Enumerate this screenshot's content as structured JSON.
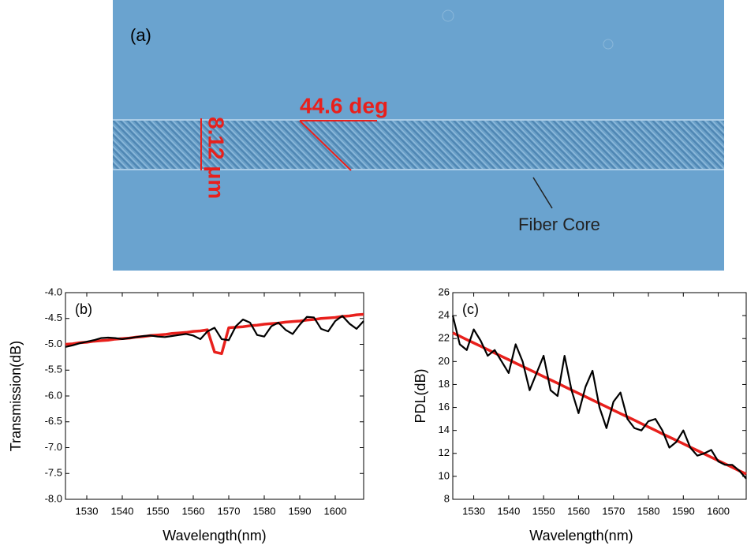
{
  "micrograph": {
    "label": "(a)",
    "angle_annotation": "44.6 deg",
    "width_annotation": "8.12 μm",
    "core_annotation": "Fiber Core"
  },
  "chart_data": [
    {
      "type": "line",
      "panel_label": "(b)",
      "x_label": "Wavelength(nm)",
      "y_label": "Transmission(dB)",
      "xlim": [
        1524,
        1608
      ],
      "xticks": [
        1530,
        1540,
        1550,
        1560,
        1570,
        1580,
        1590,
        1600
      ],
      "ylim": [
        -8,
        -4
      ],
      "yticks": [
        {
          "value": -8,
          "label": "-8.0"
        },
        -7.5,
        {
          "value": -7,
          "label": "-7.0"
        },
        -6.5,
        {
          "value": -6,
          "label": "-6.0"
        },
        -5.5,
        {
          "value": -5,
          "label": "-5.0"
        },
        -4.5,
        {
          "value": -4,
          "label": "-4.0"
        }
      ],
      "x": [
        1524,
        1526,
        1528,
        1530,
        1532,
        1534,
        1536,
        1538,
        1540,
        1542,
        1544,
        1546,
        1548,
        1550,
        1552,
        1554,
        1556,
        1558,
        1560,
        1562,
        1564,
        1566,
        1568,
        1570,
        1572,
        1574,
        1576,
        1578,
        1580,
        1582,
        1584,
        1586,
        1588,
        1590,
        1592,
        1594,
        1596,
        1598,
        1600,
        1602,
        1604,
        1606,
        1608
      ],
      "series": [
        {
          "color": "#e8201c",
          "values": [
            -5.0,
            -4.99,
            -4.97,
            -4.96,
            -4.94,
            -4.93,
            -4.92,
            -4.9,
            -4.89,
            -4.88,
            -4.86,
            -4.85,
            -4.83,
            -4.82,
            -4.81,
            -4.79,
            -4.78,
            -4.77,
            -4.75,
            -4.74,
            -4.72,
            -5.15,
            -5.18,
            -4.68,
            -4.67,
            -4.66,
            -4.64,
            -4.63,
            -4.61,
            -4.6,
            -4.59,
            -4.57,
            -4.56,
            -4.55,
            -4.53,
            -4.52,
            -4.5,
            -4.49,
            -4.48,
            -4.46,
            -4.45,
            -4.43,
            -4.42
          ]
        },
        {
          "color": "#000000",
          "values": [
            -5.05,
            -5.02,
            -4.98,
            -4.95,
            -4.92,
            -4.88,
            -4.87,
            -4.88,
            -4.9,
            -4.88,
            -4.86,
            -4.84,
            -4.83,
            -4.85,
            -4.86,
            -4.84,
            -4.82,
            -4.8,
            -4.83,
            -4.9,
            -4.75,
            -4.68,
            -4.9,
            -4.92,
            -4.65,
            -4.52,
            -4.58,
            -4.82,
            -4.85,
            -4.65,
            -4.58,
            -4.72,
            -4.8,
            -4.62,
            -4.47,
            -4.48,
            -4.7,
            -4.75,
            -4.55,
            -4.45,
            -4.6,
            -4.7,
            -4.55
          ]
        }
      ]
    },
    {
      "type": "line",
      "panel_label": "(c)",
      "x_label": "Wavelength(nm)",
      "y_label": "PDL(dB)",
      "xlim": [
        1524,
        1608
      ],
      "xticks": [
        1530,
        1540,
        1550,
        1560,
        1570,
        1580,
        1590,
        1600
      ],
      "ylim": [
        8,
        26
      ],
      "yticks": [
        8,
        10,
        12,
        14,
        16,
        18,
        20,
        22,
        24,
        26
      ],
      "x": [
        1524,
        1526,
        1528,
        1530,
        1532,
        1534,
        1536,
        1538,
        1540,
        1542,
        1544,
        1546,
        1548,
        1550,
        1552,
        1554,
        1556,
        1558,
        1560,
        1562,
        1564,
        1566,
        1568,
        1570,
        1572,
        1574,
        1576,
        1578,
        1580,
        1582,
        1584,
        1586,
        1588,
        1590,
        1592,
        1594,
        1596,
        1598,
        1600,
        1602,
        1604,
        1606,
        1608
      ],
      "series": [
        {
          "color": "#e8201c",
          "values": [
            22.5,
            22.21,
            21.91,
            21.62,
            21.33,
            21.04,
            20.74,
            20.45,
            20.16,
            19.86,
            19.57,
            19.28,
            18.99,
            18.69,
            18.4,
            18.11,
            17.81,
            17.52,
            17.23,
            16.94,
            16.64,
            16.35,
            16.06,
            15.76,
            15.47,
            15.18,
            14.89,
            14.59,
            14.3,
            14.01,
            13.71,
            13.42,
            13.13,
            12.84,
            12.54,
            12.25,
            11.96,
            11.66,
            11.37,
            11.08,
            10.79,
            10.49,
            10.2
          ]
        },
        {
          "color": "#000000",
          "values": [
            24.0,
            21.5,
            21.0,
            22.8,
            21.8,
            20.5,
            21.0,
            20.0,
            19.0,
            21.5,
            20.0,
            17.5,
            19.0,
            20.5,
            17.5,
            17.0,
            20.5,
            17.5,
            15.5,
            17.8,
            19.2,
            16.0,
            14.2,
            16.5,
            17.3,
            15.0,
            14.2,
            14.0,
            14.8,
            15.0,
            14.0,
            12.5,
            13.0,
            14.0,
            12.5,
            11.8,
            12.0,
            12.3,
            11.3,
            11.0,
            11.0,
            10.5,
            9.8
          ]
        }
      ]
    }
  ]
}
